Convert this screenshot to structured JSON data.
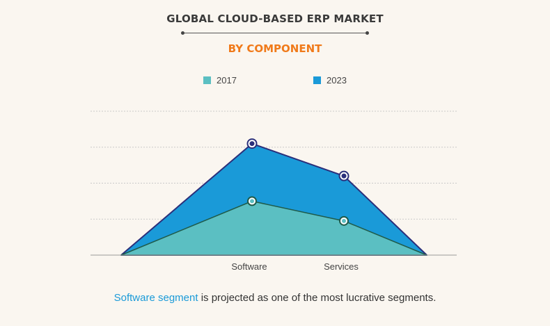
{
  "header": {
    "title": "GLOBAL CLOUD-BASED ERP MARKET",
    "subtitle": "BY COMPONENT"
  },
  "caption": {
    "highlight": "Software segment",
    "rest": " is projected as one of the most lucrative segments."
  },
  "colors": {
    "series_2017": "#5bbfc2",
    "series_2023": "#1a9ad8",
    "outline": "#2b2f7a",
    "marker_2017_ring": "#1f5b4a",
    "marker_2023_ring": "#2b2f7a",
    "grid": "#c9c9c9",
    "baseline": "#999999"
  },
  "chart_data": {
    "type": "area",
    "title": "GLOBAL CLOUD-BASED ERP MARKET",
    "subtitle": "BY COMPONENT",
    "categories": [
      "Software",
      "Services"
    ],
    "series": [
      {
        "name": "2017",
        "values": [
          1.5,
          0.95
        ]
      },
      {
        "name": "2023",
        "values": [
          3.1,
          2.2
        ]
      }
    ],
    "ylim": [
      0,
      4
    ],
    "grid": true,
    "legend_position": "top-center",
    "xlabel": "",
    "ylabel": ""
  }
}
